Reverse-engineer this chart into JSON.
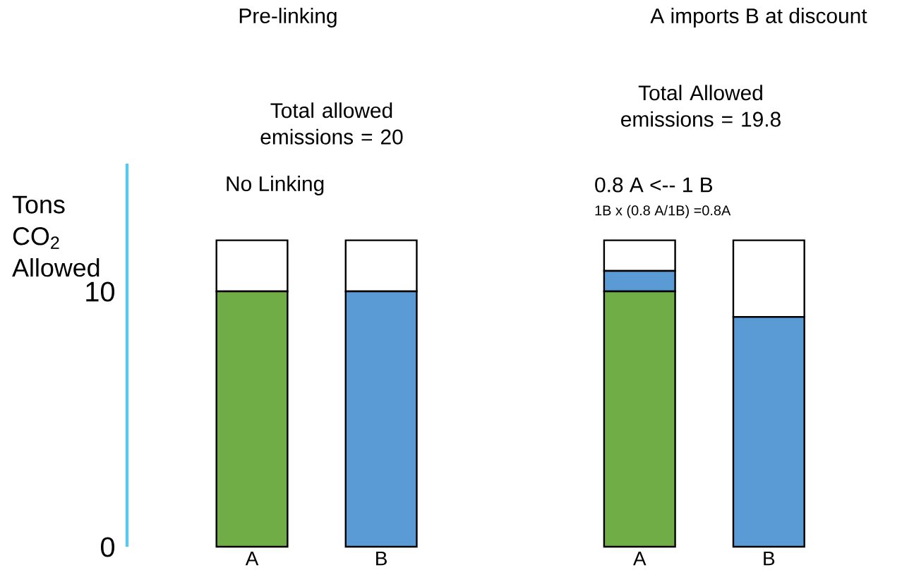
{
  "chart_data": {
    "type": "bar",
    "ylabel": "Tons CO$_{2}$ Allowed",
    "annotations": [
      "Pre-linking",
      "Total allowed emissions = 20",
      "No Linking",
      "A imports B at discount",
      "Total Allowed emissions = 19.8",
      "0.8 A <-- 1 B",
      "1B x (0.8 A/1B) =0.8A"
    ],
    "categories": [
      "A",
      "B",
      null,
      "A",
      "B"
    ],
    "stacked": true,
    "ylim": [
      0,
      15
    ],
    "yticks": [
      0,
      10
    ],
    "series": [
      {
        "color": "#70ad47",
        "values": [
          10,
          0,
          null,
          10,
          0
        ]
      },
      {
        "color": "#5b9bd5",
        "values": [
          0,
          10,
          null,
          0.8,
          9
        ]
      },
      {
        "color": "#ffffff",
        "values": [
          2,
          2,
          null,
          1.2,
          3
        ]
      }
    ]
  }
}
